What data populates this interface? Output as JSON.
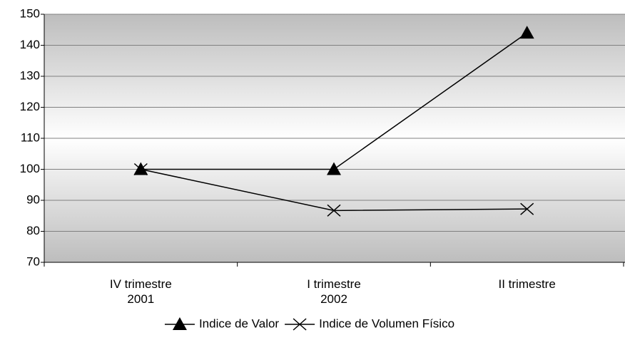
{
  "chart_data": {
    "type": "line",
    "categories": [
      "IV trimestre\n2001",
      "I trimestre\n2002",
      "II trimestre"
    ],
    "series": [
      {
        "name": "Indice de Valor",
        "color": "#000000",
        "marker": "triangle",
        "values": [
          100,
          100,
          144
        ]
      },
      {
        "name": "Indice de Volumen Físico",
        "color": "#000000",
        "marker": "x",
        "values": [
          100,
          86.7,
          87.2
        ]
      }
    ],
    "ylim": [
      70,
      150
    ],
    "yticks": [
      70,
      80,
      90,
      100,
      110,
      120,
      130,
      140,
      150
    ],
    "grid": true,
    "legend": "bottom"
  }
}
